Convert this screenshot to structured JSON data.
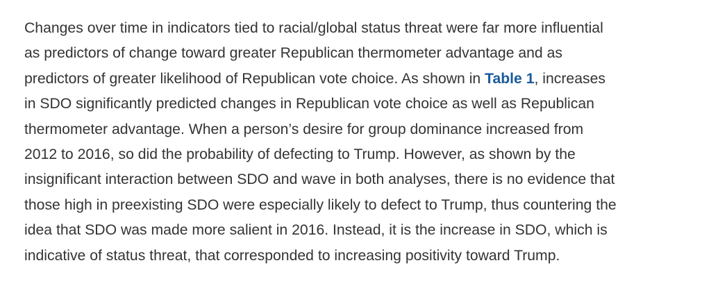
{
  "article": {
    "paragraph": {
      "line_1": "Changes over time in indicators tied to racial/global status threat were far more influential",
      "line_2": "as predictors of change toward greater Republican thermometer advantage and as",
      "line_3_before_link": "predictors of greater likelihood of Republican vote choice. As shown in ",
      "link_label": "Table 1",
      "line_3_after_link": ", increases",
      "line_4": "in SDO significantly predicted changes in Republican vote choice as well as Republican",
      "line_5": "thermometer advantage. When a person’s desire for group dominance increased from",
      "line_6": "2012 to 2016, so did the probability of defecting to Trump. However, as shown by the",
      "line_7": "insignificant interaction between SDO and wave in both analyses, there is no evidence that",
      "line_8": "those high in preexisting SDO were especially likely to defect to Trump, thus countering the",
      "line_9": "idea that SDO was made more salient in 2016. Instead, it is the increase in SDO, which is",
      "line_10": "indicative of status threat, that corresponded to increasing positivity toward Trump."
    }
  },
  "colors": {
    "body_text": "#333333",
    "link": "#1a5a9a",
    "background": "#ffffff"
  }
}
